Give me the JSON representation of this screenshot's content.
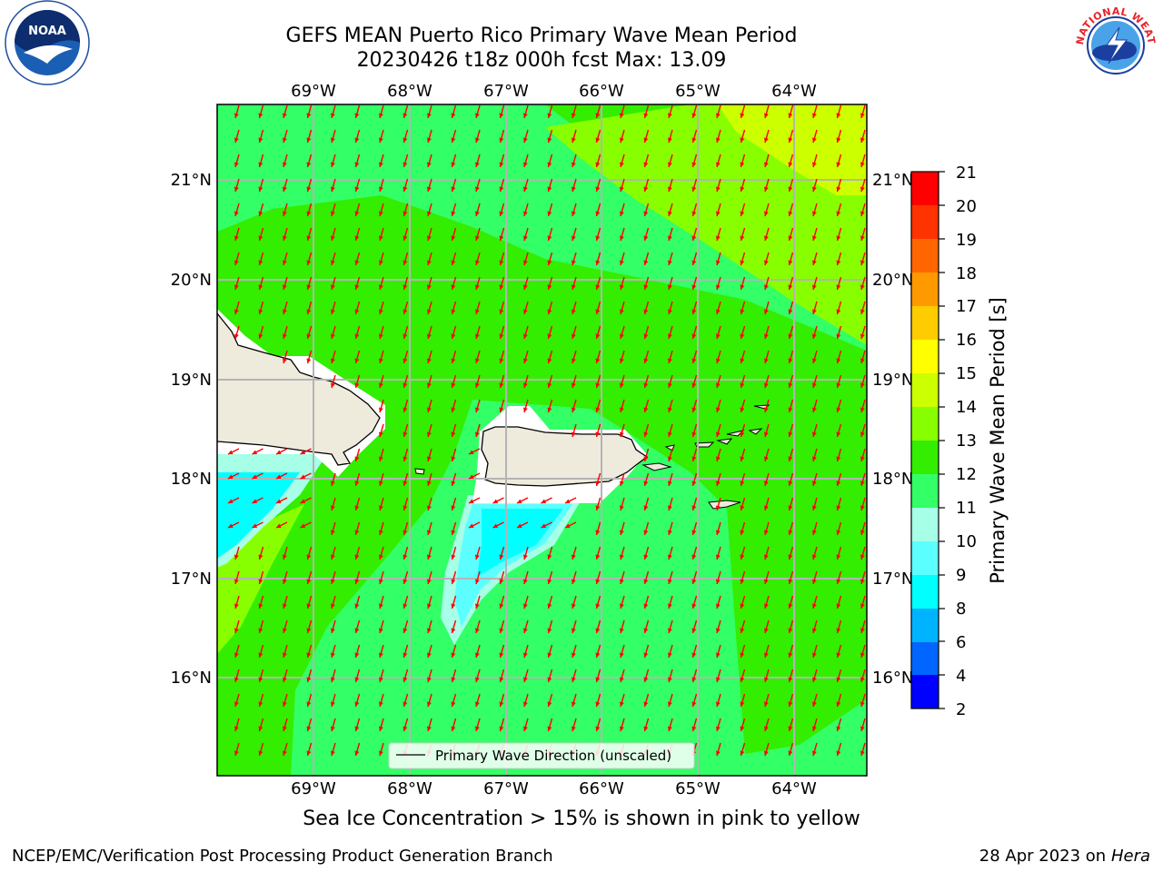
{
  "header": {
    "title_line1": "GEFS MEAN Puerto Rico Primary Wave Mean Period",
    "title_line2": "20230426 t18z 000h fcst   Max: 13.09"
  },
  "logos": {
    "left": "NOAA",
    "right": "NATIONAL WEATHER SERVICE"
  },
  "map": {
    "lon_labels": [
      "69°W",
      "68°W",
      "67°W",
      "66°W",
      "65°W",
      "64°W"
    ],
    "lat_labels": [
      "21°N",
      "20°N",
      "19°N",
      "18°N",
      "17°N",
      "16°N"
    ],
    "legend_label": "Primary Wave Direction (unscaled)",
    "arrow_color": "#ff0000",
    "land_color": "#eeebdc"
  },
  "colorbar": {
    "label": "Primary Wave Mean Period [s]",
    "ticks": [
      "2",
      "4",
      "6",
      "8",
      "9",
      "10",
      "11",
      "12",
      "13",
      "14",
      "15",
      "16",
      "17",
      "18",
      "19",
      "20",
      "21"
    ],
    "colors": [
      "#0000ff",
      "#0066ff",
      "#00b3ff",
      "#00ffff",
      "#5cffff",
      "#a6ffe6",
      "#33ff66",
      "#33ee00",
      "#88ff00",
      "#ccff00",
      "#ffff00",
      "#ffcc00",
      "#ff9900",
      "#ff6600",
      "#ff3300",
      "#ff0000"
    ]
  },
  "notes": {
    "sea_ice": "Sea Ice Concentration > 15% is shown in pink to yellow",
    "credit": "NCEP/EMC/Verification Post Processing Product Generation Branch",
    "date": "28 Apr 2023 on ",
    "machine": "Hera"
  }
}
